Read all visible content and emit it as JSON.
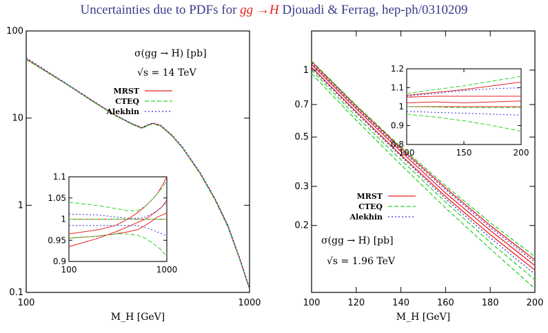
{
  "title": {
    "prefix": "Uncertainties due to PDFs for ",
    "process": "gg →H",
    "suffix": "  Djouadi & Ferrag, hep-ph/0310209"
  },
  "colors": {
    "MRST": "#e82020",
    "CTEQ": "#2bd02b",
    "Alekhin": "#2a2ad8"
  },
  "chart_data": [
    {
      "type": "line",
      "scale": "log-log",
      "title": "σ(gg → H) [pb]",
      "subtitle": "√s = 14 TeV",
      "xlabel": "M_H [GeV]",
      "xlim": [
        100,
        1000
      ],
      "ylim": [
        0.1,
        100
      ],
      "xticks": [
        "100",
        "1000"
      ],
      "yticks": [
        "0.1",
        "1",
        "10",
        "100"
      ],
      "legend": [
        "MRST",
        "CTEQ",
        "Alekhin"
      ],
      "x": [
        100,
        150,
        200,
        250,
        300,
        330,
        350,
        370,
        400,
        450,
        500,
        600,
        700,
        800,
        900,
        1000
      ],
      "series": [
        {
          "name": "MRST",
          "values": [
            48,
            25,
            15.5,
            10.8,
            8.5,
            7.7,
            8.3,
            8.7,
            8.2,
            6.3,
            4.6,
            2.35,
            1.18,
            0.58,
            0.25,
            0.11
          ]
        },
        {
          "name": "CTEQ",
          "values": [
            47,
            24.8,
            15.3,
            10.7,
            8.4,
            7.6,
            8.2,
            8.6,
            8.1,
            6.2,
            4.55,
            2.3,
            1.15,
            0.56,
            0.245,
            0.108
          ]
        },
        {
          "name": "Alekhin",
          "values": [
            49,
            25.3,
            15.7,
            10.9,
            8.6,
            7.8,
            8.4,
            8.8,
            8.3,
            6.4,
            4.7,
            2.4,
            1.2,
            0.59,
            0.255,
            0.112
          ]
        }
      ],
      "inset": {
        "xlim": [
          100,
          1000
        ],
        "ylim": [
          0.9,
          1.1
        ],
        "xticks": [
          "100",
          "1000"
        ],
        "yticks": [
          "0.9",
          "0.95",
          "1",
          "1.05",
          "1.1"
        ],
        "x": [
          100,
          200,
          300,
          400,
          500,
          600,
          700,
          800,
          900,
          1000
        ],
        "series": [
          {
            "name": "MRST",
            "values": [
              1.0,
              1.0,
              1.0,
              1.0,
              1.0,
              1.0,
              1.0,
              1.0,
              1.0,
              1.0
            ]
          },
          {
            "name": "MRST",
            "values": [
              0.965,
              0.975,
              0.985,
              1.0,
              1.015,
              1.03,
              1.045,
              1.06,
              1.08,
              1.1
            ]
          },
          {
            "name": "MRST",
            "values": [
              0.935,
              0.955,
              0.97,
              0.982,
              0.992,
              1.0,
              1.01,
              1.02,
              1.03,
              1.045
            ]
          },
          {
            "name": "MRST",
            "values": [
              0.955,
              0.96,
              0.965,
              0.97,
              0.975,
              0.985,
              0.995,
              1.005,
              1.01,
              1.015
            ]
          },
          {
            "name": "CTEQ",
            "values": [
              1.04,
              1.032,
              1.025,
              1.02,
              1.02,
              1.03,
              1.045,
              1.06,
              1.075,
              1.09
            ]
          },
          {
            "name": "CTEQ",
            "values": [
              0.955,
              0.96,
              0.965,
              0.965,
              0.962,
              0.955,
              0.945,
              0.935,
              0.925,
              0.91
            ]
          },
          {
            "name": "CTEQ",
            "values": [
              1.0,
              1.0,
              1.0,
              1.0,
              1.0,
              1.0,
              1.0,
              1.0,
              1.0,
              1.0
            ]
          },
          {
            "name": "Alekhin",
            "values": [
              1.012,
              1.01,
              1.005,
              1.002,
              1.002,
              1.005,
              1.012,
              1.02,
              1.03,
              1.04
            ]
          },
          {
            "name": "Alekhin",
            "values": [
              0.985,
              0.985,
              0.985,
              0.985,
              0.985,
              0.98,
              0.975,
              0.97,
              0.965,
              0.96
            ]
          }
        ]
      }
    },
    {
      "type": "line",
      "scale": "log-y",
      "title": "σ(gg → H) [pb]",
      "subtitle": "√s = 1.96 TeV",
      "xlabel": "M_H [GeV]",
      "xlim": [
        100,
        200
      ],
      "ylim": [
        0.1,
        1.5
      ],
      "xticks": [
        "100",
        "120",
        "140",
        "160",
        "180",
        "200"
      ],
      "yticks": [
        "0.2",
        "0.3",
        "0.5",
        "0.7",
        "1"
      ],
      "legend": [
        "MRST",
        "CTEQ",
        "Alekhin"
      ],
      "x": [
        100,
        120,
        140,
        160,
        180,
        200
      ],
      "series": [
        {
          "name": "MRST",
          "values": [
            1.06,
            0.67,
            0.43,
            0.28,
            0.19,
            0.132
          ]
        },
        {
          "name": "MRST",
          "values": [
            1.03,
            0.65,
            0.415,
            0.27,
            0.182,
            0.126
          ]
        },
        {
          "name": "MRST",
          "values": [
            1.09,
            0.69,
            0.445,
            0.295,
            0.2,
            0.14
          ]
        },
        {
          "name": "CTEQ",
          "values": [
            1.1,
            0.695,
            0.452,
            0.302,
            0.206,
            0.145
          ]
        },
        {
          "name": "CTEQ",
          "values": [
            1.0,
            0.62,
            0.395,
            0.255,
            0.168,
            0.114
          ]
        },
        {
          "name": "CTEQ",
          "values": [
            0.965,
            0.595,
            0.375,
            0.24,
            0.157,
            0.104
          ]
        },
        {
          "name": "Alekhin",
          "values": [
            1.075,
            0.68,
            0.438,
            0.29,
            0.196,
            0.137
          ]
        },
        {
          "name": "Alekhin",
          "values": [
            1.02,
            0.64,
            0.41,
            0.264,
            0.176,
            0.121
          ]
        }
      ],
      "inset": {
        "xlim": [
          100,
          200
        ],
        "ylim": [
          0.8,
          1.2
        ],
        "xticks": [
          "100",
          "150",
          "200"
        ],
        "yticks": [
          "0.8",
          "0.9",
          "1",
          "1.1",
          "1.2"
        ],
        "x": [
          100,
          125,
          150,
          175,
          200
        ],
        "series": [
          {
            "name": "MRST",
            "values": [
              1.0,
              1.0,
              1.0,
              1.0,
              1.0
            ]
          },
          {
            "name": "MRST",
            "values": [
              1.05,
              1.055,
              1.055,
              1.055,
              1.055
            ]
          },
          {
            "name": "MRST",
            "values": [
              1.02,
              1.025,
              1.02,
              1.025,
              1.03
            ]
          },
          {
            "name": "MRST",
            "values": [
              1.06,
              1.075,
              1.09,
              1.11,
              1.13
            ]
          },
          {
            "name": "CTEQ",
            "values": [
              1.07,
              1.09,
              1.11,
              1.135,
              1.16
            ]
          },
          {
            "name": "CTEQ",
            "values": [
              0.96,
              0.945,
              0.925,
              0.9,
              0.87
            ]
          },
          {
            "name": "CTEQ",
            "values": [
              1.0,
              0.998,
              0.995,
              0.995,
              0.995
            ]
          },
          {
            "name": "Alekhin",
            "values": [
              1.055,
              1.07,
              1.085,
              1.095,
              1.1
            ]
          },
          {
            "name": "Alekhin",
            "values": [
              0.975,
              0.97,
              0.965,
              0.96,
              0.955
            ]
          }
        ]
      }
    }
  ]
}
